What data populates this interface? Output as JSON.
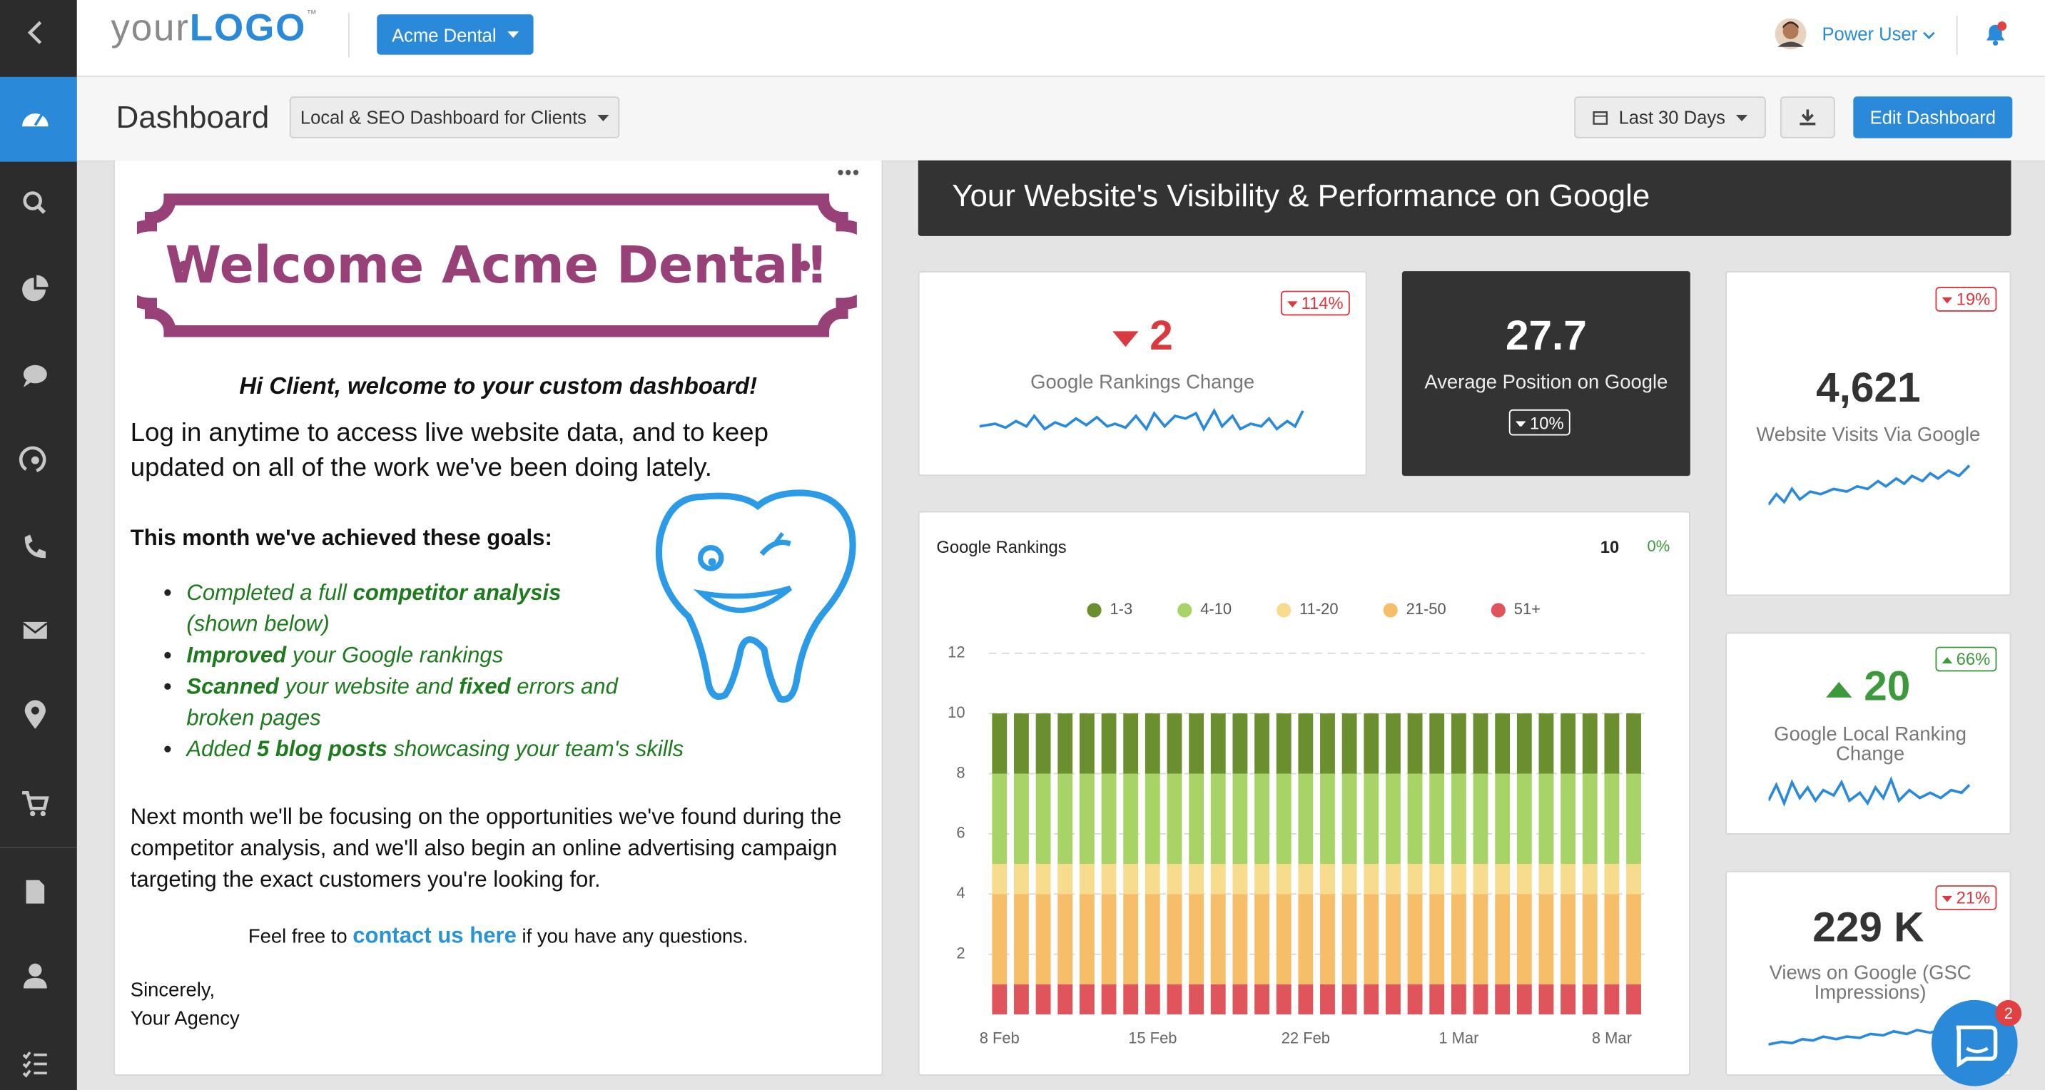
{
  "header": {
    "logo_your": "your",
    "logo_brand": "LOGO",
    "logo_tm": "™",
    "client": "Acme Dental",
    "user": "Power User"
  },
  "toolbar": {
    "title": "Dashboard",
    "dashboard_select": "Local & SEO Dashboard for Clients",
    "date_range": "Last 30 Days",
    "edit": "Edit Dashboard"
  },
  "welcome": {
    "banner": "Welcome Acme Dental!",
    "greeting": "Hi Client, welcome to your custom dashboard!",
    "intro": "Log in anytime to access live website data, and to keep updated on all of the work we've been doing lately.",
    "goals_heading": "This month we've achieved these goals:",
    "goals": [
      [
        {
          "text": "Completed a full ",
          "strong": false
        },
        {
          "text": "competitor analysis",
          "strong": true
        },
        {
          "text": " (shown below)",
          "strong": false
        }
      ],
      [
        {
          "text": "Improved",
          "strong": true
        },
        {
          "text": " your Google rankings",
          "strong": false
        }
      ],
      [
        {
          "text": "Scanned",
          "strong": true
        },
        {
          "text": " your website and ",
          "strong": false
        },
        {
          "text": "fixed",
          "strong": true
        },
        {
          "text": " errors and broken pages",
          "strong": false
        }
      ],
      [
        {
          "text": "Added ",
          "strong": false
        },
        {
          "text": "5 blog posts",
          "strong": true
        },
        {
          "text": " showcasing your team's skills",
          "strong": false
        }
      ]
    ],
    "next_month": "Next month we'll be focusing on the opportunities we've found during the competitor analysis, and we'll also begin an online advertising campaign targeting the exact customers you're looking for.",
    "contact_before": "Feel free to ",
    "contact_link": "contact us here",
    "contact_after": " if you have any questions.",
    "sign_off": "Sincerely,",
    "signature": "Your Agency"
  },
  "section_title": "Your Website's Visibility & Performance on Google",
  "metrics": [
    {
      "value": "2",
      "label": "Google Rankings Change",
      "change": "114%",
      "direction": "down"
    },
    {
      "value": "27.7",
      "label": "Average Position on Google",
      "change": "10%",
      "direction": "down"
    },
    {
      "value": "4,621",
      "label": "Website Visits Via Google",
      "change": "19%",
      "direction": "down"
    },
    {
      "value": "20",
      "label": "Google Local Ranking Change",
      "change": "66%",
      "direction": "up"
    },
    {
      "value": "229 K",
      "label": "Views on Google (GSC Impressions)",
      "change": "21%",
      "direction": "down"
    }
  ],
  "rankings_chart": {
    "type": "stacked-bar",
    "title": "Google Rankings",
    "total": "10",
    "total_change": "0%",
    "categories": [
      "8 Feb",
      null,
      null,
      null,
      null,
      null,
      null,
      "15 Feb",
      null,
      null,
      null,
      null,
      null,
      null,
      "22 Feb",
      null,
      null,
      null,
      null,
      null,
      null,
      "1 Mar",
      null,
      null,
      null,
      null,
      null,
      null,
      "8 Mar",
      null
    ],
    "series": [
      {
        "name": "1-3",
        "color": "#6b8e2f",
        "values": [
          2,
          2,
          2,
          2,
          2,
          2,
          2,
          2,
          2,
          2,
          2,
          2,
          2,
          2,
          2,
          2,
          2,
          2,
          2,
          2,
          2,
          2,
          2,
          2,
          2,
          2,
          2,
          2,
          2,
          2
        ]
      },
      {
        "name": "4-10",
        "color": "#a8d467",
        "values": [
          3,
          3,
          3,
          3,
          3,
          3,
          3,
          3,
          3,
          3,
          3,
          3,
          3,
          3,
          3,
          3,
          3,
          3,
          3,
          3,
          3,
          3,
          3,
          3,
          3,
          3,
          3,
          3,
          3,
          3
        ]
      },
      {
        "name": "11-20",
        "color": "#f7dc8e",
        "values": [
          1,
          1,
          1,
          1,
          1,
          1,
          1,
          1,
          1,
          1,
          1,
          1,
          1,
          1,
          1,
          1,
          1,
          1,
          1,
          1,
          1,
          1,
          1,
          1,
          1,
          1,
          1,
          1,
          1,
          1
        ]
      },
      {
        "name": "21-50",
        "color": "#f7be6a",
        "values": [
          3,
          3,
          3,
          3,
          3,
          3,
          3,
          3,
          3,
          3,
          3,
          3,
          3,
          3,
          3,
          3,
          3,
          3,
          3,
          3,
          3,
          3,
          3,
          3,
          3,
          3,
          3,
          3,
          3,
          3
        ]
      },
      {
        "name": "51+",
        "color": "#e0545c",
        "values": [
          1,
          1,
          1,
          1,
          1,
          1,
          1,
          1,
          1,
          1,
          1,
          1,
          1,
          1,
          1,
          1,
          1,
          1,
          1,
          1,
          1,
          1,
          1,
          1,
          1,
          1,
          1,
          1,
          1,
          1
        ]
      }
    ],
    "ylim": [
      0,
      12
    ],
    "yticks": [
      2,
      4,
      6,
      8,
      10,
      12
    ],
    "grid": true
  },
  "chat": {
    "badge": "2"
  }
}
